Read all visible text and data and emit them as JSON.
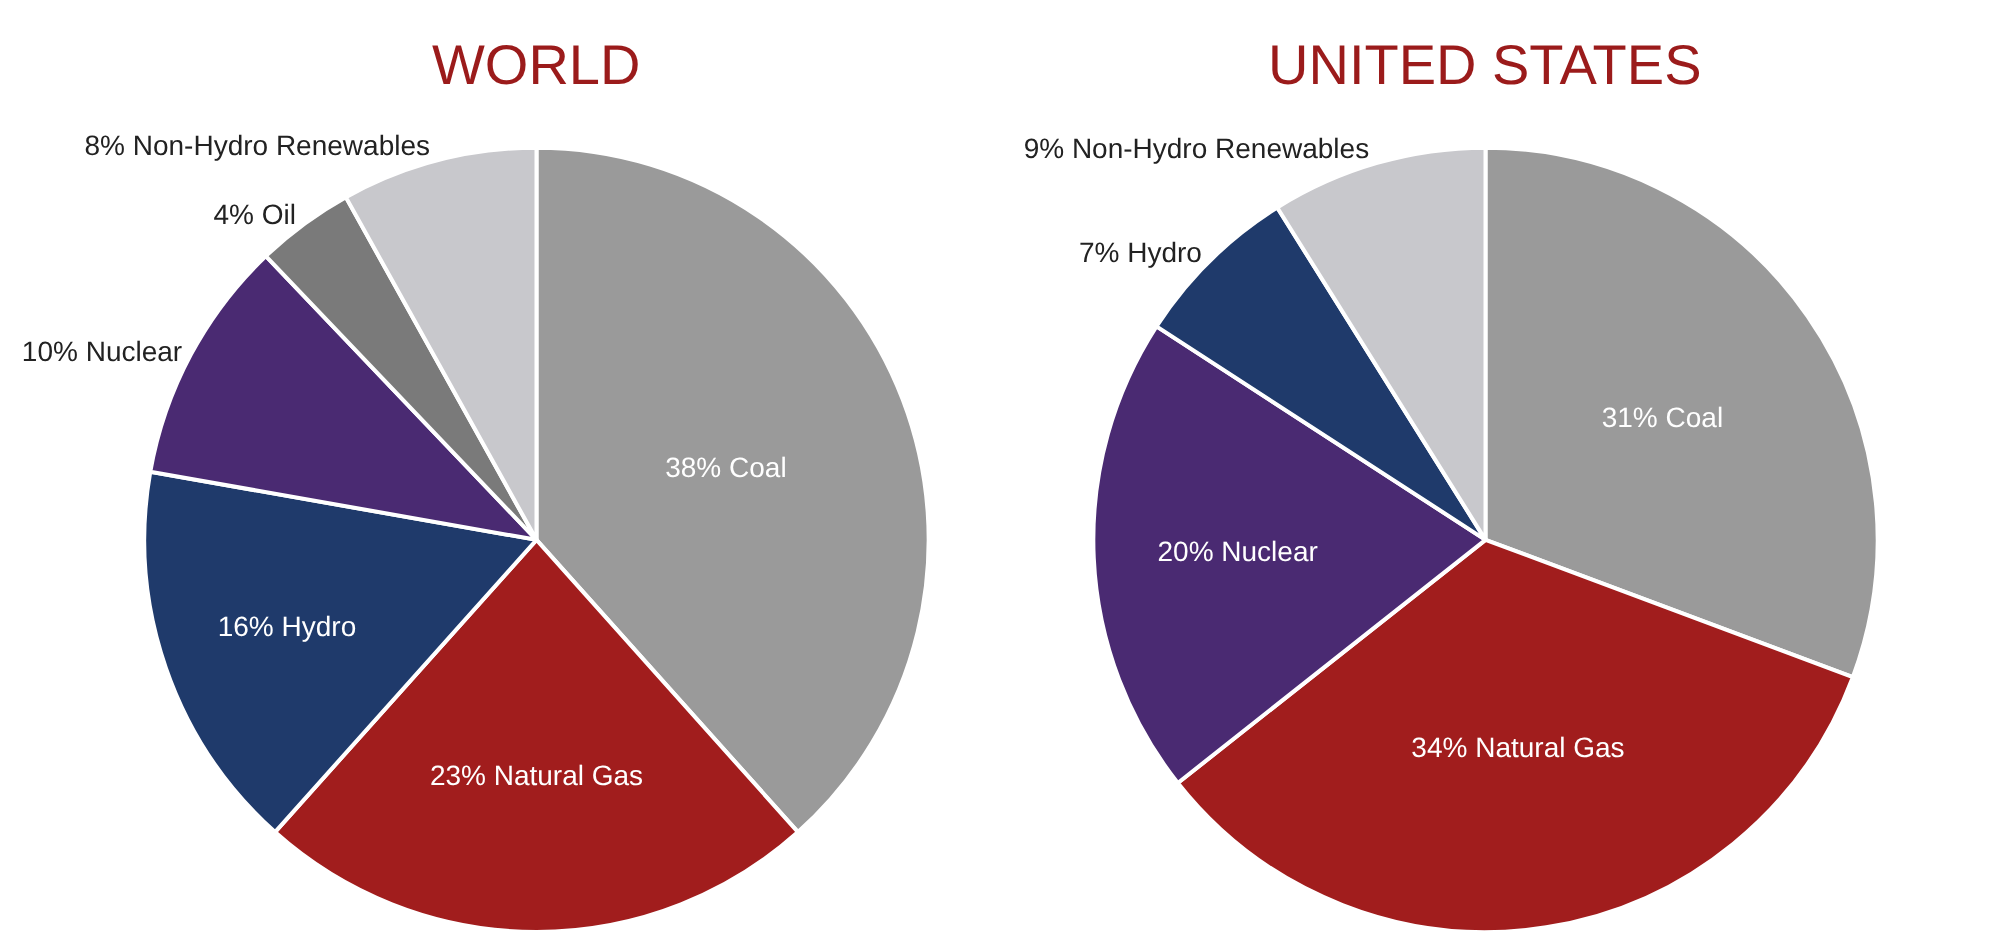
{
  "chart_data": [
    {
      "type": "pie",
      "title": "WORLD",
      "categories": [
        "38% Coal",
        "23% Natural Gas",
        "16% Hydro",
        "10% Nuclear",
        "4% Oil",
        "8% Non-Hydro Renewables"
      ],
      "values": [
        38,
        23,
        16,
        10,
        4,
        8
      ],
      "colors": [
        "#9a9a9a",
        "#a11d1d",
        "#1f3a6b",
        "#4a2a72",
        "#7a7a7a",
        "#c8c8cc"
      ],
      "legend": false
    },
    {
      "type": "pie",
      "title": "UNITED STATES",
      "categories": [
        "31% Coal",
        "34% Natural Gas",
        "20% Nuclear",
        "7% Hydro",
        "9% Non-Hydro Renewables"
      ],
      "values": [
        31,
        34,
        20,
        7,
        9
      ],
      "colors": [
        "#9a9a9a",
        "#a11d1d",
        "#4a2a72",
        "#1f3a6b",
        "#c8c8cc"
      ],
      "legend": false
    }
  ]
}
